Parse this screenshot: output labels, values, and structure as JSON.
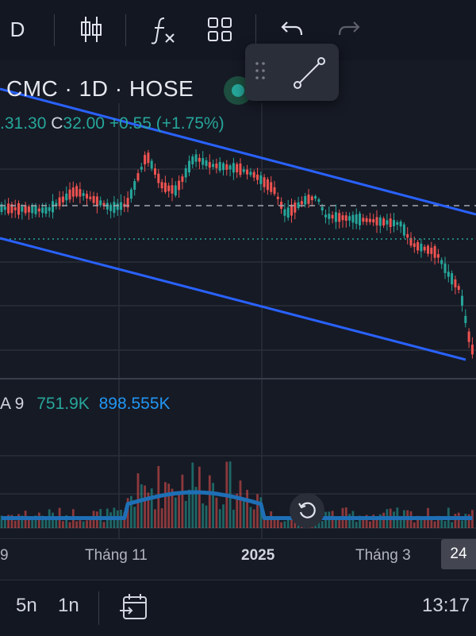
{
  "toolbar": {
    "interval_label": "D",
    "icons": [
      "candlestick-icon",
      "indicators-icon",
      "layouts-icon",
      "undo-icon",
      "redo-icon"
    ]
  },
  "legend": {
    "title": "CMC · 1D · HOSE",
    "open_partial": ".31.30",
    "close_label": "C",
    "close_value": "32.00",
    "change": "+0.55",
    "change_pct": "(+1.75%)",
    "status_color": "#26a69a"
  },
  "volume_legend": {
    "label_partial": "A 9",
    "volume": "751.9K",
    "ma_value": "898.555K",
    "volume_color": "#26a69a",
    "ma_color": "#2196f3"
  },
  "x_axis": {
    "labels": [
      "9",
      "Tháng 11",
      "2025",
      "Tháng 3"
    ],
    "current_label": "24"
  },
  "bottom_bar": {
    "range_5y": "5n",
    "range_1y": "1n",
    "time": "13:17"
  },
  "colors": {
    "up": "#26a69a",
    "down": "#ef5350",
    "trendline": "#2962ff",
    "volume_ma": "#1e6fb5"
  }
}
